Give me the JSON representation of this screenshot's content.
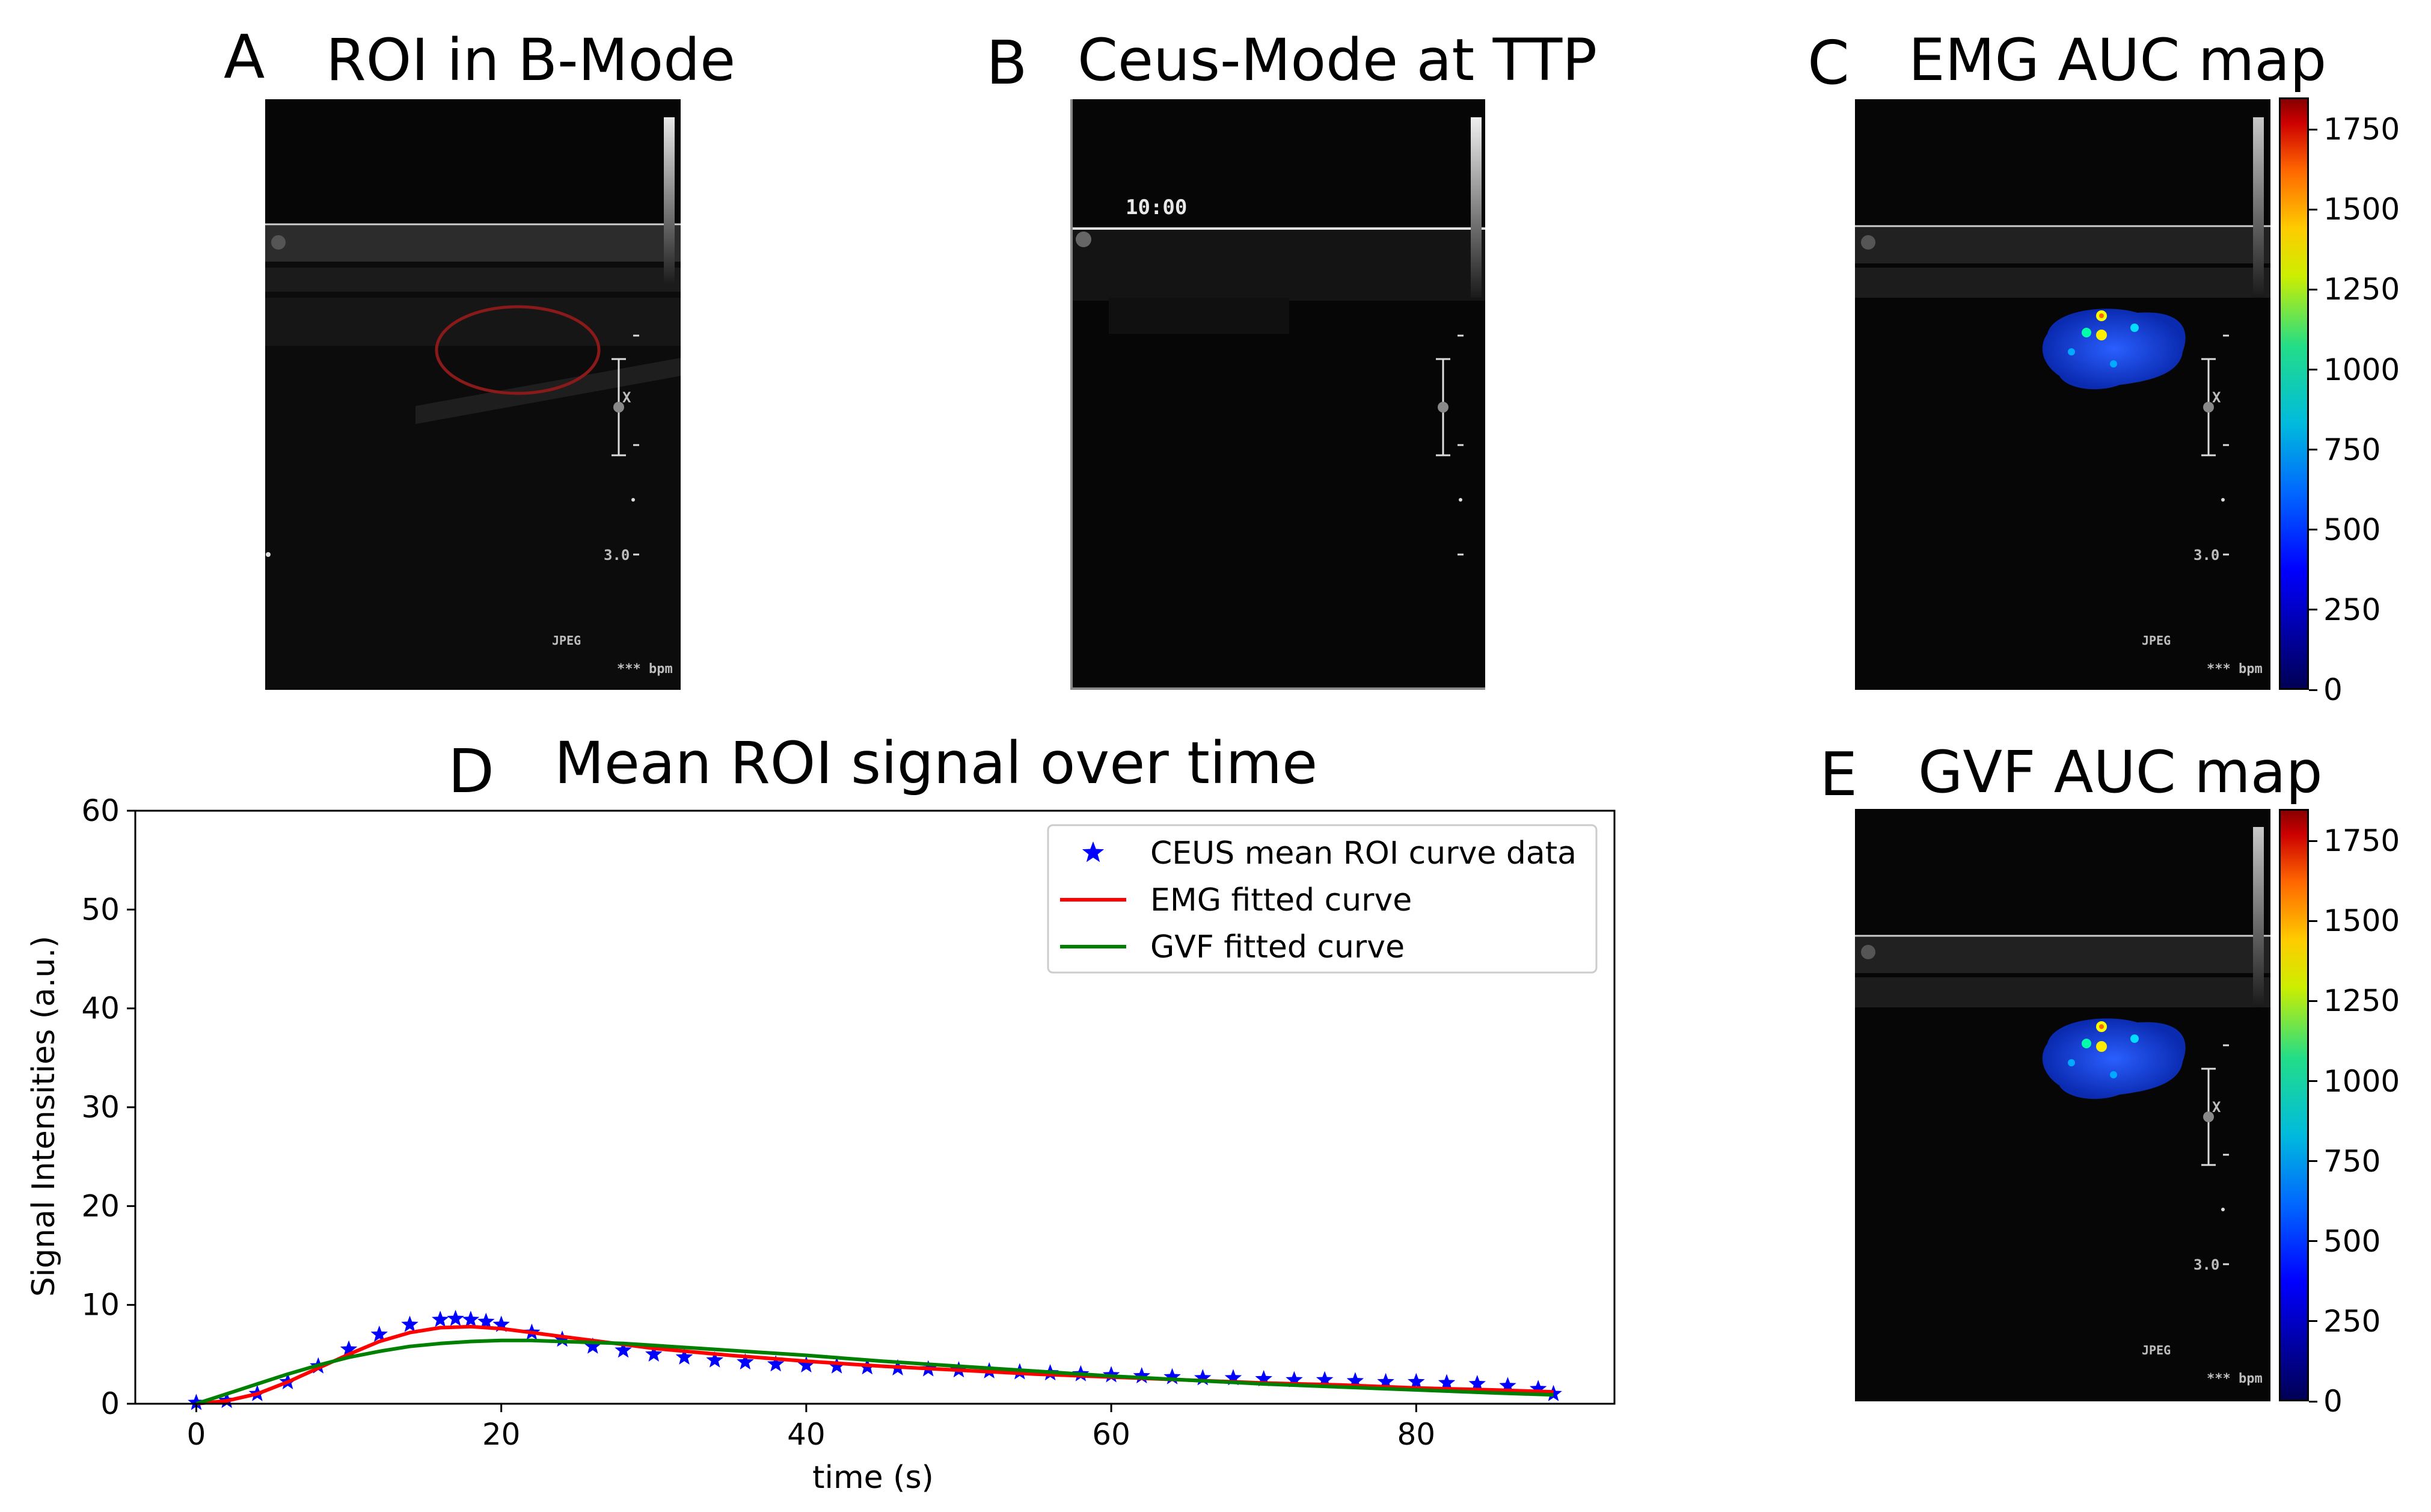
{
  "panels": {
    "A": {
      "letter": "A",
      "title": "ROI in B-Mode"
    },
    "B": {
      "letter": "B",
      "title": "Ceus-Mode at TTP",
      "timestamp": "10:00"
    },
    "C": {
      "letter": "C",
      "title": "EMG AUC map"
    },
    "D": {
      "letter": "D",
      "title": "Mean ROI signal over time"
    },
    "E": {
      "letter": "E",
      "title": "GVF AUC map"
    }
  },
  "ultrasound": {
    "depth_label": "3.0",
    "jpeg_label": "JPEG",
    "bpm_label": "*** bpm",
    "marker_x": "X"
  },
  "colorbar": {
    "ticks": [
      "0",
      "250",
      "500",
      "750",
      "1000",
      "1250",
      "1500",
      "1750"
    ],
    "range": [
      0,
      1850
    ],
    "colors": [
      "#000066",
      "#0000ff",
      "#00aaff",
      "#00ffaa",
      "#ffff00",
      "#ff8800",
      "#cc0000",
      "#880000"
    ]
  },
  "chart_data": {
    "type": "line",
    "title": "Mean ROI signal over time",
    "xlabel": "time (s)",
    "ylabel": "Signal Intensities (a.u.)",
    "xlim": [
      -4,
      93
    ],
    "ylim": [
      0,
      60
    ],
    "xticks": [
      0,
      20,
      40,
      60,
      80
    ],
    "yticks": [
      0,
      10,
      20,
      30,
      40,
      50,
      60
    ],
    "legend_position": "top-right",
    "series": [
      {
        "name": "CEUS mean ROI curve data",
        "style": "star-markers",
        "color": "#0000ff",
        "x": [
          0,
          2,
          4,
          6,
          8,
          10,
          12,
          14,
          16,
          17,
          18,
          19,
          20,
          22,
          24,
          26,
          28,
          30,
          32,
          34,
          36,
          38,
          40,
          42,
          44,
          46,
          48,
          50,
          52,
          54,
          56,
          58,
          60,
          62,
          64,
          66,
          68,
          70,
          72,
          74,
          76,
          78,
          80,
          82,
          84,
          86,
          88,
          89
        ],
        "y": [
          0.1,
          0.3,
          1.0,
          2.2,
          3.8,
          5.5,
          7.0,
          8.0,
          8.5,
          8.6,
          8.5,
          8.3,
          8.0,
          7.2,
          6.5,
          5.8,
          5.4,
          5.0,
          4.7,
          4.4,
          4.2,
          4.0,
          3.9,
          3.8,
          3.7,
          3.6,
          3.5,
          3.4,
          3.3,
          3.2,
          3.1,
          3.0,
          2.9,
          2.8,
          2.7,
          2.6,
          2.6,
          2.5,
          2.4,
          2.4,
          2.3,
          2.2,
          2.2,
          2.1,
          2.0,
          1.8,
          1.5,
          1.0
        ]
      },
      {
        "name": "EMG fitted curve",
        "style": "line",
        "color": "#ff0000",
        "x": [
          0,
          2,
          4,
          6,
          8,
          10,
          12,
          14,
          16,
          18,
          20,
          22,
          24,
          26,
          28,
          30,
          35,
          40,
          45,
          50,
          55,
          60,
          65,
          70,
          75,
          80,
          85,
          89
        ],
        "y": [
          0.0,
          0.3,
          1.0,
          2.2,
          3.6,
          5.0,
          6.3,
          7.2,
          7.7,
          7.8,
          7.6,
          7.2,
          6.8,
          6.4,
          6.0,
          5.6,
          4.9,
          4.3,
          3.8,
          3.4,
          3.0,
          2.7,
          2.4,
          2.1,
          1.9,
          1.6,
          1.4,
          1.2
        ]
      },
      {
        "name": "GVF fitted curve",
        "style": "line",
        "color": "#008000",
        "x": [
          0,
          2,
          4,
          6,
          8,
          10,
          12,
          14,
          16,
          18,
          20,
          22,
          24,
          26,
          28,
          30,
          35,
          40,
          45,
          50,
          55,
          60,
          65,
          70,
          75,
          80,
          85,
          89
        ],
        "y": [
          0.0,
          1.0,
          2.0,
          3.0,
          3.9,
          4.7,
          5.3,
          5.8,
          6.1,
          6.3,
          6.4,
          6.4,
          6.3,
          6.2,
          6.1,
          5.9,
          5.4,
          4.9,
          4.3,
          3.8,
          3.3,
          2.8,
          2.4,
          2.0,
          1.7,
          1.4,
          1.1,
          0.9
        ]
      }
    ]
  }
}
